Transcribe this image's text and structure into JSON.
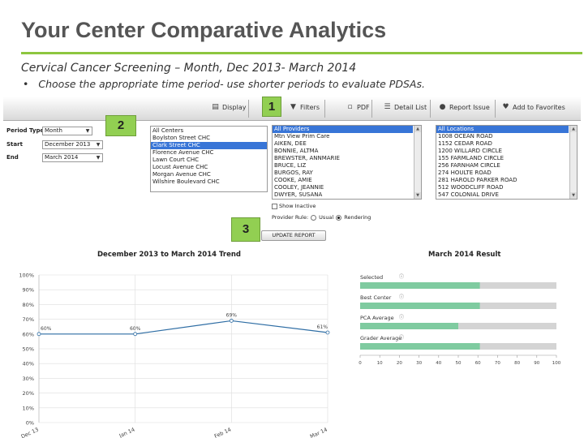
{
  "slide": {
    "title": "Your Center Comparative Analytics",
    "subtitle": "Cervical Cancer Screening – Month,  Dec 2013- March 2014",
    "bullet": "Choose the appropriate time period- use shorter periods to evaluate PDSAs."
  },
  "callouts": {
    "one": "1",
    "two": "2",
    "three": "3"
  },
  "toolbar": {
    "display": "Display",
    "filters": "Filters",
    "pdf": "PDF",
    "detail_list": "Detail List",
    "report_issue": "Report Issue",
    "add_favorites": "Add to Favorites"
  },
  "period": {
    "type_label": "Period Type",
    "type_value": "Month",
    "start_label": "Start",
    "start_value": "December 2013",
    "end_label": "End",
    "end_value": "March 2014"
  },
  "centers": [
    "All Centers",
    "Boylston Street CHC",
    "Clark Street CHC",
    "Florence Avenue CHC",
    "Lawn Court CHC",
    "Locust Avenue CHC",
    "Morgan Avenue CHC",
    "Wilshire Boulevard CHC"
  ],
  "centers_selected_index": 2,
  "providers": [
    "All Providers",
    "Mtn View Prim Care",
    "AIKEN, DEE",
    "BONNIE, ALTMA",
    "BREWSTER, ANNMARIE",
    "BRUCE, LIZ",
    "BURGOS, RAY",
    "COOKE, AMIE",
    "COOLEY, JEANNIE",
    "DWYER, SUSANA"
  ],
  "providers_selected_index": 0,
  "locations": [
    "All Locations",
    "1008 OCEAN ROAD",
    "1152 CEDAR ROAD",
    "1200 WILLARD CIRCLE",
    "155 FARMLAND CIRCLE",
    "256 FARNHAM CIRCLE",
    "274 HOULTE ROAD",
    "281 HAROLD PARKER ROAD",
    "512 WOODCLIFF ROAD",
    "547 COLONIAL DRIVE"
  ],
  "locations_selected_index": 0,
  "show_inactive": "Show Inactive",
  "provider_rule": {
    "label": "Provider Rule:",
    "usual": "Usual",
    "rendering": "Rendering",
    "selected": "rendering"
  },
  "update_button": "UPDATE REPORT",
  "chart_data": [
    {
      "type": "line",
      "title": "December 2013 to March 2014 Trend",
      "categories": [
        "Dec 13",
        "Jan 14",
        "Feb 14",
        "Mar 14"
      ],
      "values": [
        60,
        60,
        69,
        61
      ],
      "data_labels": [
        "60%",
        "60%",
        "69%",
        "61%"
      ],
      "ylim": [
        0,
        100
      ],
      "yticks": [
        "0%",
        "10%",
        "20%",
        "30%",
        "40%",
        "50%",
        "60%",
        "70%",
        "80%",
        "90%",
        "100%"
      ],
      "colors": {
        "line": "#2e6da4",
        "grid": "#dddddd"
      }
    },
    {
      "type": "bar",
      "orientation": "horizontal",
      "title": "March 2014 Result",
      "categories": [
        "Selected",
        "Best Center",
        "PCA Average",
        "Grader Average"
      ],
      "values": [
        61,
        61,
        50,
        61
      ],
      "xlim": [
        0,
        100
      ],
      "xticks": [
        "0",
        "10",
        "20",
        "30",
        "40",
        "50",
        "60",
        "70",
        "80",
        "90",
        "100"
      ],
      "colors": {
        "bar": "#7fcba0",
        "track": "#d4d4d4"
      }
    }
  ]
}
